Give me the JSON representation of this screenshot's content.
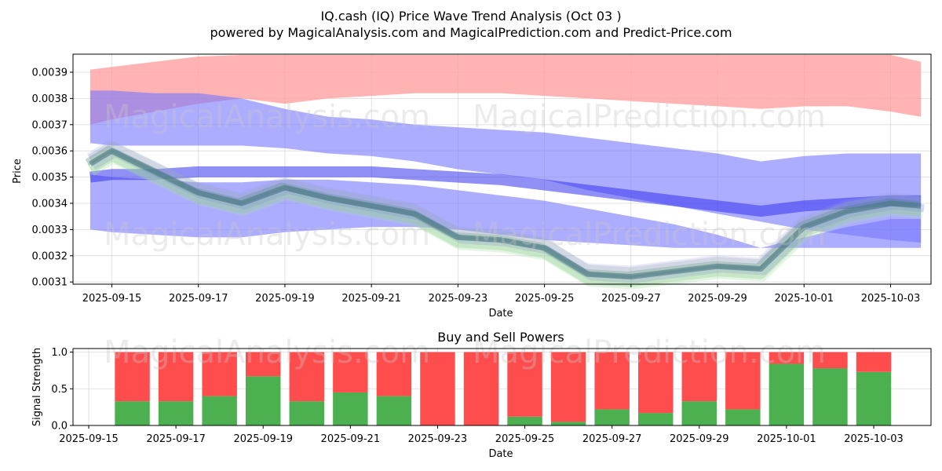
{
  "title": "IQ.cash (IQ) Price Wave Trend Analysis (Oct 03 )",
  "subtitle": "powered by MagicalAnalysis.com and MagicalPrediction.com and Predict-Price.com",
  "watermarks": [
    "MagicalAnalysis.com",
    "MagicalPrediction.com"
  ],
  "colors": {
    "red_band": "#ff9999",
    "blue_band": "#7777ff",
    "green": "#4caf50",
    "red_bar": "#ff4d4d"
  },
  "chart_data": [
    {
      "type": "area",
      "title": "",
      "xlabel": "Date",
      "ylabel": "Price",
      "ylim": [
        0.00309,
        0.00398
      ],
      "yticks": [
        0.0031,
        0.0032,
        0.0033,
        0.0034,
        0.0035,
        0.0036,
        0.0037,
        0.0038,
        0.0039
      ],
      "ytick_labels": [
        "0.0031",
        "0.0032",
        "0.0033",
        "0.0034",
        "0.0035",
        "0.0036",
        "0.0037",
        "0.0038",
        "0.0039"
      ],
      "xlim": [
        "2025-09-14.0",
        "2025-10-04.0"
      ],
      "xticks": [
        15,
        17,
        19,
        21,
        23,
        25,
        27,
        29,
        31,
        33
      ],
      "xtick_labels": [
        "2025-09-15",
        "2025-09-17",
        "2025-09-19",
        "2025-09-21",
        "2025-09-23",
        "2025-09-25",
        "2025-09-27",
        "2025-09-29",
        "2025-10-01",
        "2025-10-03"
      ],
      "x_days": [
        14.5,
        15,
        16,
        17,
        18,
        19,
        20,
        21,
        22,
        23,
        24,
        25,
        26,
        27,
        28,
        29,
        30,
        31,
        32,
        33,
        33.7
      ],
      "bands": [
        {
          "name": "upper red band",
          "upper": [
            0.00391,
            0.00392,
            0.00394,
            0.00396,
            0.00398,
            0.00398,
            0.00398,
            0.00398,
            0.00398,
            0.00398,
            0.00398,
            0.00398,
            0.00398,
            0.00398,
            0.00398,
            0.00398,
            0.00398,
            0.00398,
            0.00398,
            0.00397,
            0.00394
          ],
          "lower": [
            0.0037,
            0.00372,
            0.00375,
            0.00378,
            0.0038,
            0.00378,
            0.0038,
            0.00381,
            0.00382,
            0.00382,
            0.00382,
            0.00381,
            0.0038,
            0.00379,
            0.00378,
            0.00377,
            0.00376,
            0.00377,
            0.00377,
            0.00375,
            0.00373
          ]
        },
        {
          "name": "blue band high",
          "upper": [
            0.00383,
            0.00383,
            0.00382,
            0.00382,
            0.0038,
            0.00376,
            0.00373,
            0.00372,
            0.0037,
            0.00369,
            0.00368,
            0.00367,
            0.00365,
            0.00363,
            0.00361,
            0.00359,
            0.00356,
            0.00358,
            0.00359,
            0.00359,
            0.00359
          ],
          "lower": [
            0.00363,
            0.00362,
            0.00362,
            0.00362,
            0.00362,
            0.00361,
            0.00359,
            0.00358,
            0.00356,
            0.00353,
            0.00351,
            0.00349,
            0.00345,
            0.00342,
            0.00339,
            0.00336,
            0.00333,
            0.0033,
            0.00328,
            0.00326,
            0.00325
          ]
        },
        {
          "name": "blue band low",
          "upper": [
            0.00351,
            0.0035,
            0.00349,
            0.00348,
            0.00348,
            0.00349,
            0.00349,
            0.00348,
            0.00347,
            0.00345,
            0.00343,
            0.00341,
            0.00338,
            0.00335,
            0.00332,
            0.00328,
            0.00323,
            0.00327,
            0.00331,
            0.00334,
            0.00334
          ],
          "lower": [
            0.0033,
            0.00329,
            0.00328,
            0.00327,
            0.00327,
            0.00329,
            0.0033,
            0.00331,
            0.00331,
            0.0033,
            0.00328,
            0.00326,
            0.00325,
            0.00324,
            0.00323,
            0.00323,
            0.00323,
            0.00323,
            0.00323,
            0.00323,
            0.00323
          ]
        }
      ],
      "lines": [
        {
          "name": "blue trend",
          "values": [
            0.0035,
            0.00351,
            0.00351,
            0.00352,
            0.00352,
            0.00352,
            0.00352,
            0.00352,
            0.00351,
            0.0035,
            0.00349,
            0.00347,
            0.00345,
            0.00343,
            0.00341,
            0.00339,
            0.00337,
            0.00339,
            0.0034,
            0.00341,
            0.00341
          ]
        },
        {
          "name": "price wave",
          "values": [
            0.00355,
            0.0036,
            0.00352,
            0.00344,
            0.0034,
            0.00346,
            0.00342,
            0.00339,
            0.00336,
            0.00327,
            0.00326,
            0.00323,
            0.00313,
            0.00312,
            0.00314,
            0.00316,
            0.00315,
            0.00331,
            0.00337,
            0.0034,
            0.00339
          ]
        }
      ]
    },
    {
      "type": "bar",
      "title": "Buy and Sell Powers",
      "xlabel": "Date",
      "ylabel": "Signal Strength",
      "ylim": [
        0,
        1.05
      ],
      "yticks": [
        0.0,
        0.5,
        1.0
      ],
      "ytick_labels": [
        "0.0",
        "0.5",
        "1.0"
      ],
      "xticks": [
        15,
        17,
        19,
        21,
        23,
        25,
        27,
        29,
        31,
        33
      ],
      "xtick_labels": [
        "2025-09-15",
        "2025-09-17",
        "2025-09-19",
        "2025-09-21",
        "2025-09-23",
        "2025-09-25",
        "2025-09-27",
        "2025-09-29",
        "2025-10-01",
        "2025-10-03"
      ],
      "x_days": [
        16,
        17,
        18,
        19,
        20,
        21,
        22,
        23,
        24,
        25,
        26,
        27,
        28,
        29,
        30,
        31,
        32,
        33
      ],
      "series": [
        {
          "name": "Buy",
          "values": [
            0.33,
            0.33,
            0.4,
            0.67,
            0.33,
            0.45,
            0.4,
            0.0,
            0.0,
            0.12,
            0.05,
            0.22,
            0.17,
            0.33,
            0.22,
            0.84,
            0.78,
            0.73
          ]
        },
        {
          "name": "Sell",
          "values": [
            0.67,
            0.67,
            0.6,
            0.33,
            0.67,
            0.55,
            0.6,
            1.0,
            1.0,
            0.88,
            0.95,
            0.78,
            0.83,
            0.67,
            0.78,
            0.16,
            0.22,
            0.27
          ]
        }
      ]
    }
  ]
}
